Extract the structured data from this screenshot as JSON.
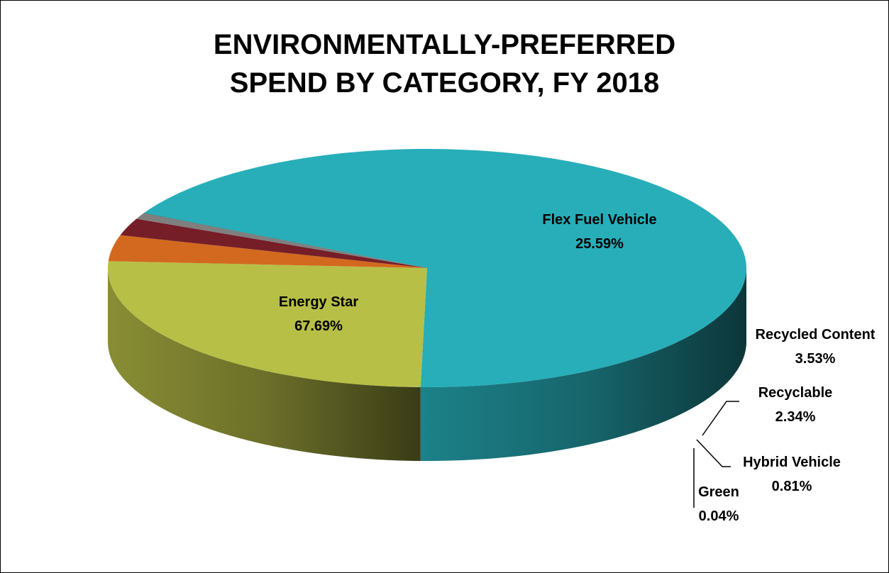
{
  "chart_data": {
    "type": "pie",
    "title_lines": [
      "ENVIRONMENTALLY-PREFERRED",
      "SPEND BY CATEGORY, FY 2018"
    ],
    "slices": [
      {
        "name": "Energy Star",
        "value": 67.69,
        "label": "67.69%",
        "color": "#27AEB9"
      },
      {
        "name": "Flex Fuel Vehicle",
        "value": 25.59,
        "label": "25.59%",
        "color": "#B8BF47"
      },
      {
        "name": "Recycled Content",
        "value": 3.53,
        "label": "3.53%",
        "color": "#D2691E"
      },
      {
        "name": "Recyclable",
        "value": 2.34,
        "label": "2.34%",
        "color": "#761E28"
      },
      {
        "name": "Hybrid Vehicle",
        "value": 0.81,
        "label": "0.81%",
        "color": "#7F7F7F"
      },
      {
        "name": "Green",
        "value": 0.04,
        "label": "0.04%",
        "color": "#3E3E3E"
      }
    ],
    "legend": "none",
    "style": "3d-pie"
  }
}
